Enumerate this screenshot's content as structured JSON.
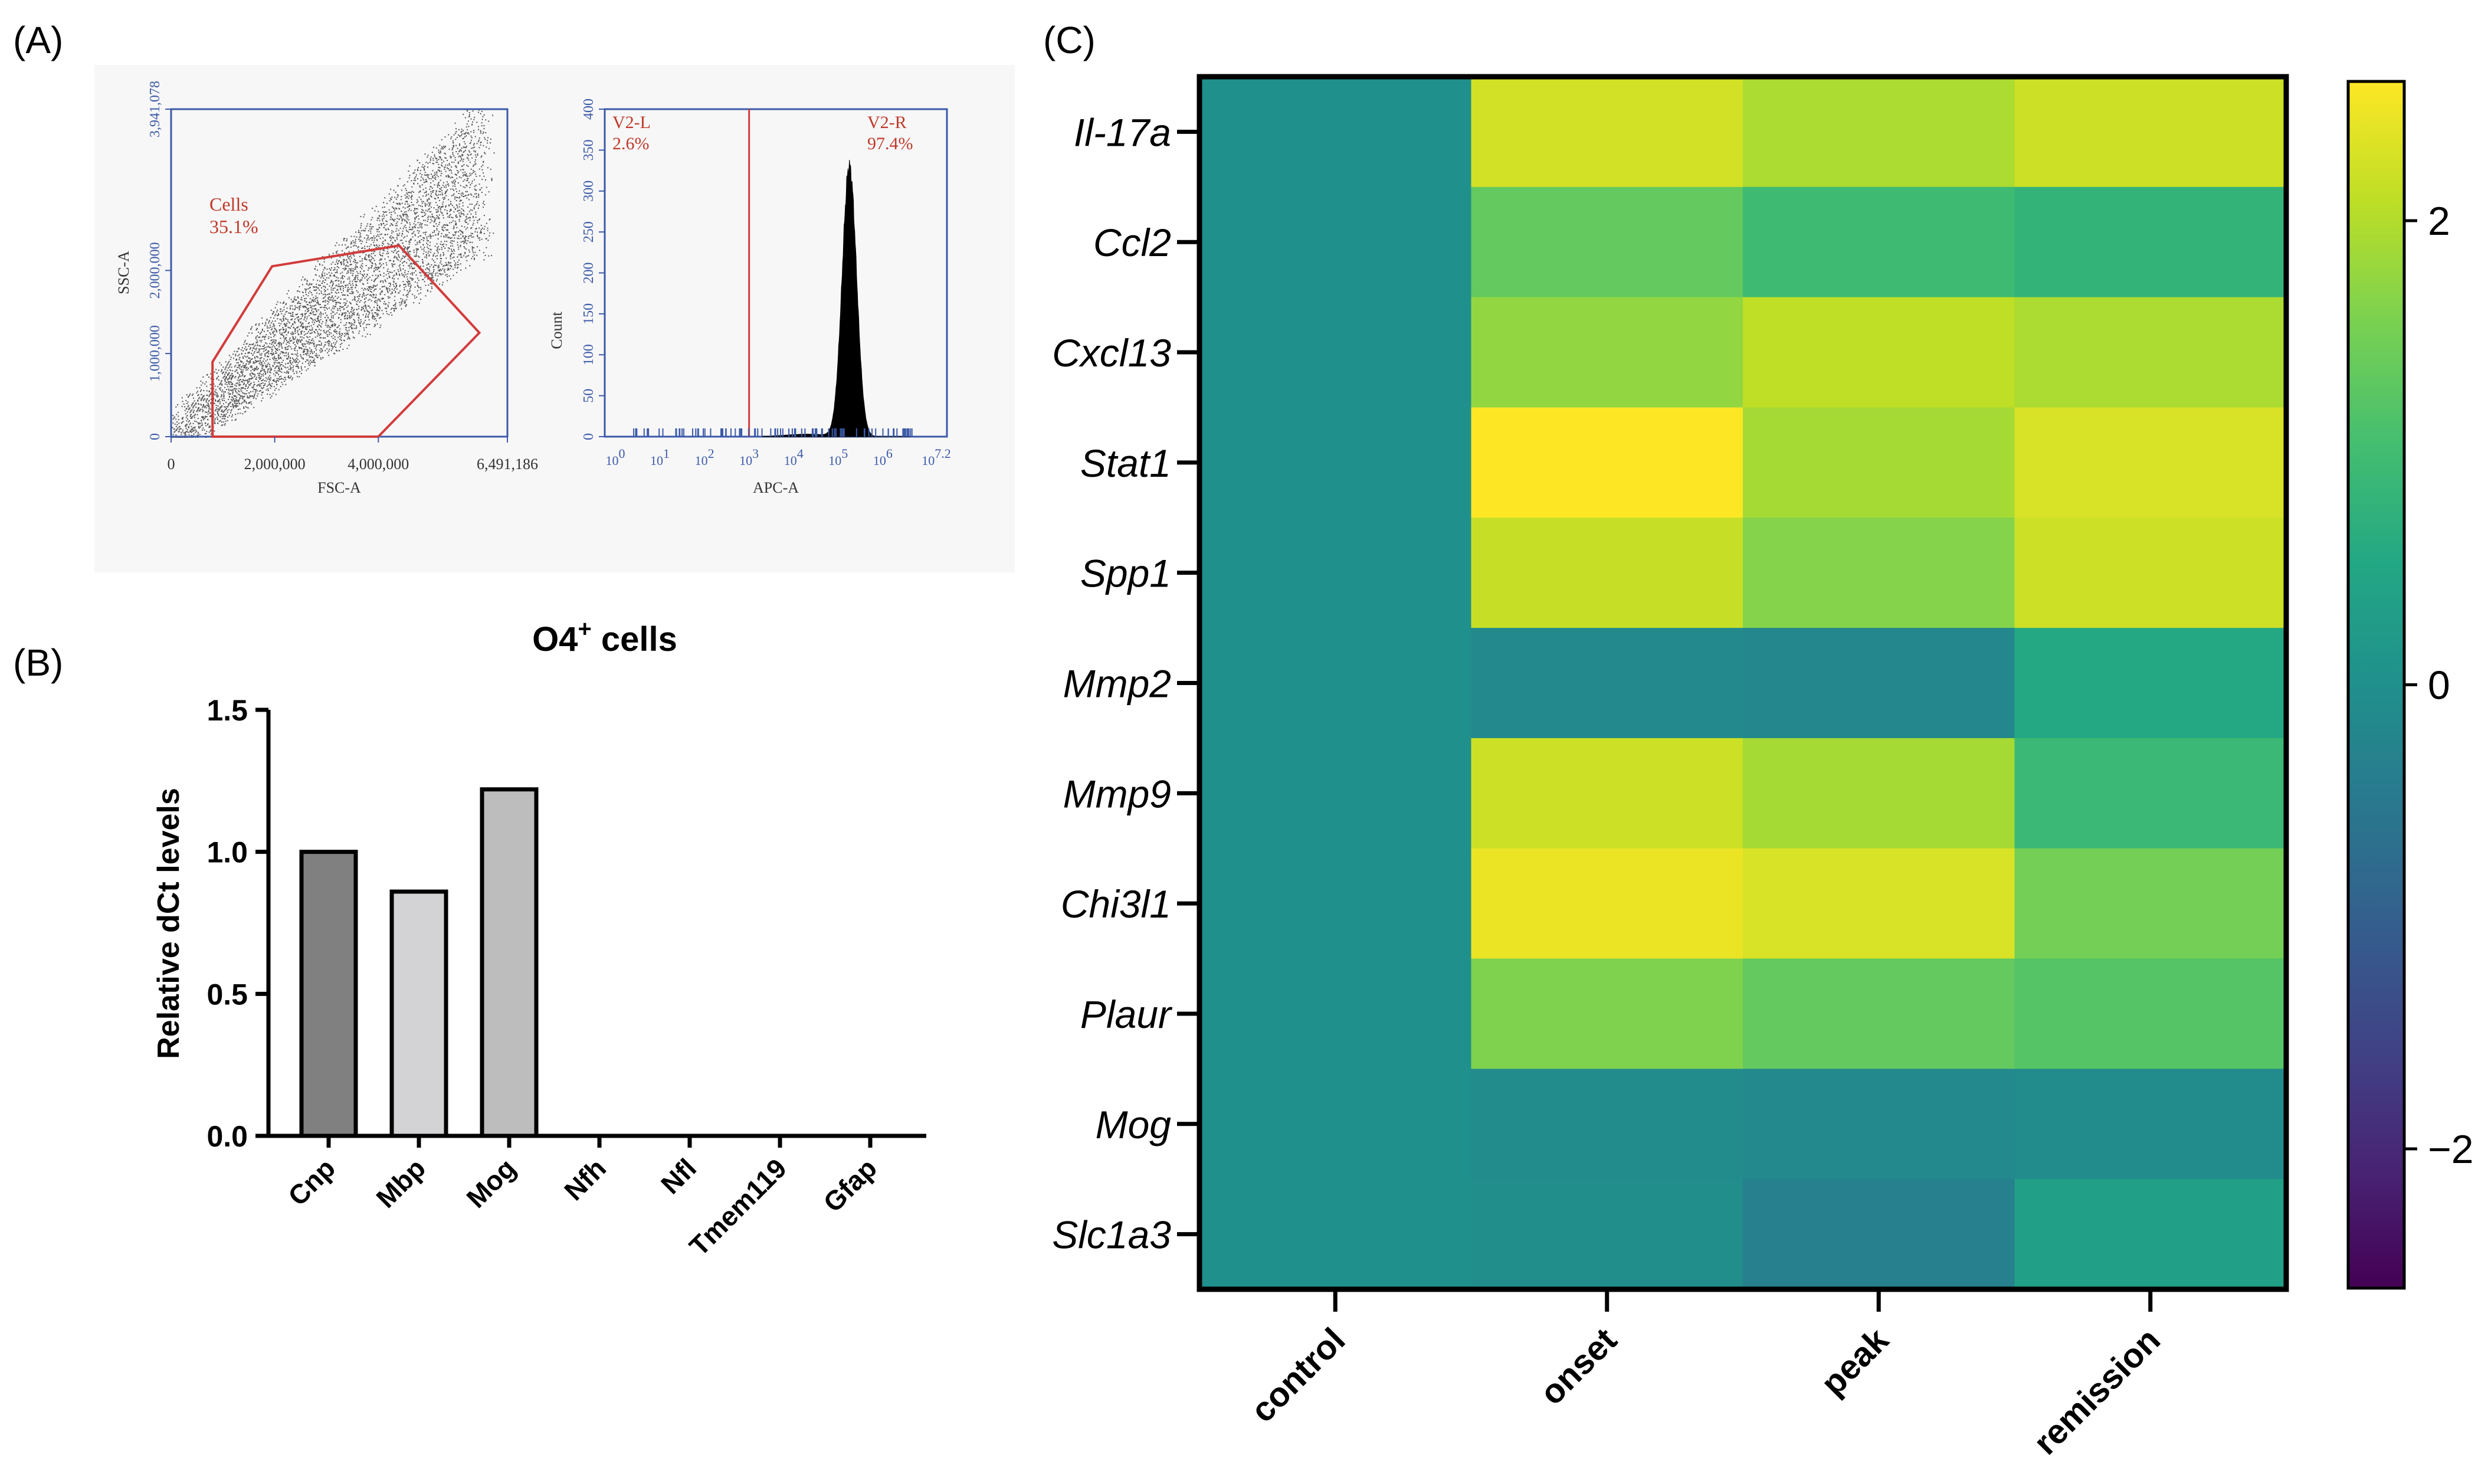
{
  "panels": [
    {
      "label": "(A)"
    },
    {
      "label": "(B)"
    },
    {
      "label": "(C)"
    }
  ],
  "chart_data": [
    {
      "type": "scatter",
      "panel": "(A)",
      "title": "",
      "xlabel": "FSC-A",
      "ylabel": "SSC-A",
      "xlim": [
        0,
        6491186
      ],
      "ylim": [
        0,
        3941078
      ],
      "x_tick_labels": [
        "0",
        "2,000,000",
        "4,000,000",
        "6,491,186"
      ],
      "y_tick_labels": [
        "0",
        "1,000,000",
        "2,000,000",
        "3,941,078"
      ],
      "x_ticks": [
        0,
        2000000,
        4000000,
        6491186
      ],
      "y_ticks": [
        0,
        1000000,
        2000000,
        3941078
      ],
      "gate": {
        "name": "Cells",
        "percent": "35.1%"
      },
      "gate_polygon": [
        [
          800000,
          0
        ],
        [
          800000,
          900000
        ],
        [
          1950000,
          2050000
        ],
        [
          4400000,
          2300000
        ],
        [
          5950000,
          1250000
        ],
        [
          4000000,
          0
        ]
      ],
      "point_color": "#555555"
    },
    {
      "type": "histogram",
      "panel": "(A)",
      "xlabel": "APC-A",
      "ylabel": "Count",
      "xscale": "log",
      "xlim": [
        0,
        7.2
      ],
      "ylim": [
        0,
        400
      ],
      "y_ticks": [
        0,
        50,
        100,
        150,
        200,
        250,
        300,
        350,
        400
      ],
      "y_tick_labels": [
        "0",
        "50",
        "100",
        "150",
        "200",
        "250",
        "300",
        "350",
        "400"
      ],
      "x_tick_labels": [
        {
          "base": "10",
          "exp": "0",
          "log": 0
        },
        {
          "base": "10",
          "exp": "1",
          "log": 1
        },
        {
          "base": "10",
          "exp": "2",
          "log": 2
        },
        {
          "base": "10",
          "exp": "3",
          "log": 3
        },
        {
          "base": "10",
          "exp": "4",
          "log": 4
        },
        {
          "base": "10",
          "exp": "5",
          "log": 5
        },
        {
          "base": "10",
          "exp": "6",
          "log": 6
        },
        {
          "base": "10",
          "exp": "7.2",
          "log": 7.2
        }
      ],
      "gate_boundary_log": 3.0,
      "gates": [
        {
          "name": "V2-L",
          "percent": "2.6%"
        },
        {
          "name": "V2-R",
          "percent": "97.4%"
        }
      ],
      "peak_log": 5.25,
      "peak_count": 330
    },
    {
      "type": "bar",
      "panel": "(B)",
      "title": "O4",
      "title_superscript": "+",
      "title_suffix": " cells",
      "ylabel": "Relative dCt levels",
      "xlabel": "",
      "ylim": [
        0,
        1.5
      ],
      "y_ticks": [
        0.0,
        0.5,
        1.0,
        1.5
      ],
      "y_tick_labels": [
        "0.0",
        "0.5",
        "1.0",
        "1.5"
      ],
      "categories": [
        "Cnp",
        "Mbp",
        "Mog",
        "Nfh",
        "Nfl",
        "Tmem119",
        "Gfap"
      ],
      "values": [
        1.0,
        0.86,
        1.22,
        0,
        0,
        0,
        0
      ],
      "colors": [
        "#808080",
        "#d3d3d5",
        "#bdbdbd",
        "#ffffff",
        "#ffffff",
        "#ffffff",
        "#ffffff"
      ]
    },
    {
      "type": "heatmap",
      "panel": "(C)",
      "rows": [
        "Il-17a",
        "Ccl2",
        "Cxcl13",
        "Stat1",
        "Spp1",
        "Mmp2",
        "Mmp9",
        "Chi3l1",
        "Plaur",
        "Mog",
        "Slc1a3"
      ],
      "columns": [
        "control",
        "onset",
        "peak",
        "remission"
      ],
      "values": [
        [
          0,
          2.25,
          1.95,
          2.2
        ],
        [
          0,
          1.35,
          0.95,
          0.8
        ],
        [
          0,
          1.75,
          2.1,
          1.95
        ],
        [
          0,
          2.6,
          1.9,
          2.3
        ],
        [
          0,
          2.15,
          1.65,
          2.2
        ],
        [
          0,
          -0.15,
          -0.2,
          0.55
        ],
        [
          0,
          2.2,
          1.9,
          0.9
        ],
        [
          0,
          2.45,
          2.3,
          1.5
        ],
        [
          0,
          1.6,
          1.35,
          1.2
        ],
        [
          0,
          -0.1,
          -0.15,
          -0.1
        ],
        [
          0,
          -0.05,
          -0.35,
          0.35
        ]
      ],
      "vmin": -2.6,
      "vmax": 2.6,
      "colormap": "viridis",
      "colorbar_ticks": [
        -2,
        0,
        2
      ],
      "colorbar_tick_labels": [
        "−2",
        "0",
        "2"
      ]
    }
  ]
}
